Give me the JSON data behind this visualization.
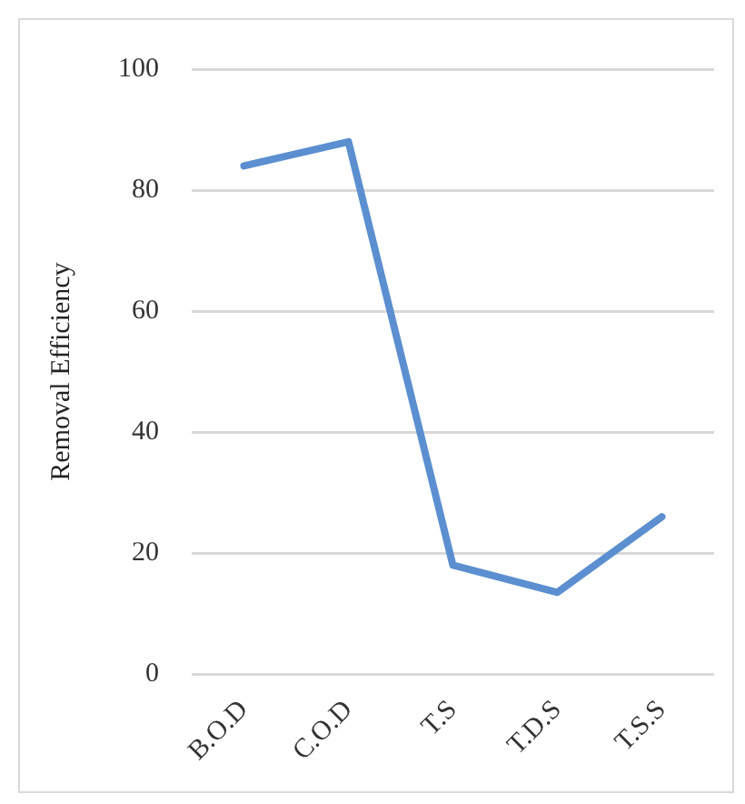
{
  "chart_data": {
    "type": "line",
    "ylabel": "Removal Efficiency",
    "categories": [
      "B.O.D",
      "C.O.D",
      "T.S",
      "T.D.S",
      "T.S.S"
    ],
    "series": [
      {
        "color": "#5b8fd0",
        "values": [
          84,
          88,
          18,
          13.5,
          26
        ]
      }
    ],
    "ylim": [
      0,
      100
    ],
    "yticks": [
      0,
      20,
      40,
      60,
      80,
      100
    ],
    "grid": "y",
    "legend": false,
    "marker": "none",
    "line_style": "solid"
  }
}
